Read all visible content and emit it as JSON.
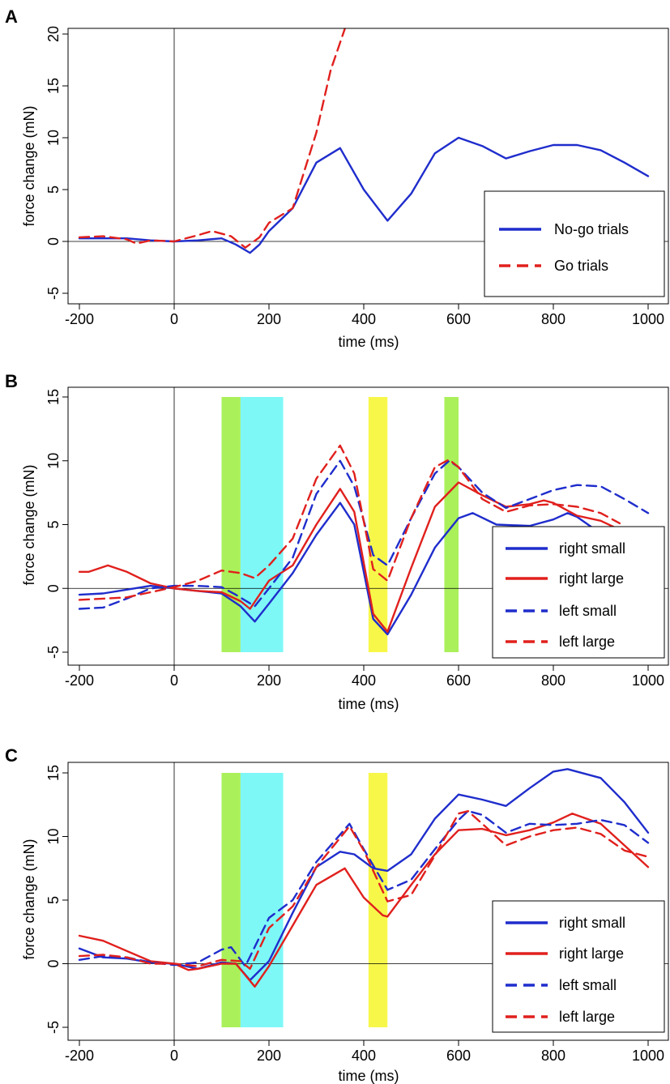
{
  "chart_data": [
    {
      "panel": "A",
      "type": "line",
      "xlabel": "time (ms)",
      "ylabel": "force change (mN)",
      "xlim": [
        -200,
        1000
      ],
      "ylim": [
        -5,
        20
      ],
      "xticks": [
        -200,
        0,
        200,
        400,
        600,
        800,
        1000
      ],
      "yticks": [
        -5,
        0,
        5,
        10,
        15,
        20
      ],
      "grid": false,
      "legend_position": "bottom-right",
      "bands": [],
      "series": [
        {
          "name": "No-go trials",
          "color": "#1f2dcc",
          "dash": "solid",
          "x": [
            -200,
            -150,
            -100,
            -50,
            0,
            50,
            100,
            130,
            160,
            180,
            200,
            250,
            300,
            350,
            400,
            450,
            500,
            550,
            600,
            650,
            700,
            750,
            800,
            850,
            900,
            950,
            1000
          ],
          "y": [
            0.3,
            0.3,
            0.3,
            0.1,
            0,
            0.1,
            0.3,
            -0.3,
            -1.1,
            -0.3,
            1.0,
            3.2,
            7.6,
            9.0,
            5.0,
            2.0,
            4.6,
            8.5,
            10.0,
            9.2,
            8.0,
            8.7,
            9.3,
            9.3,
            8.8,
            7.6,
            6.3
          ]
        },
        {
          "name": "Go trials",
          "color": "#e0201d",
          "dash": "dashed",
          "x": [
            -200,
            -150,
            -100,
            -80,
            -50,
            0,
            50,
            80,
            120,
            150,
            180,
            200,
            250,
            300,
            330,
            360
          ],
          "y": [
            0.4,
            0.5,
            0.2,
            -0.2,
            0.1,
            0,
            0.6,
            1.0,
            0.5,
            -0.6,
            0.4,
            1.8,
            3.2,
            10.5,
            16.5,
            20.5
          ]
        }
      ]
    },
    {
      "panel": "B",
      "type": "line",
      "xlabel": "time (ms)",
      "ylabel": "force change (mN)",
      "xlim": [
        -200,
        1000
      ],
      "ylim": [
        -5,
        15
      ],
      "xticks": [
        -200,
        0,
        200,
        400,
        600,
        800,
        1000
      ],
      "yticks": [
        -5,
        0,
        5,
        10,
        15
      ],
      "grid": false,
      "legend_position": "bottom-right",
      "bands": [
        {
          "from": 100,
          "to": 140,
          "color": "#aaf05a"
        },
        {
          "from": 140,
          "to": 230,
          "color": "#7ef7f7"
        },
        {
          "from": 410,
          "to": 450,
          "color": "#f7f74a"
        },
        {
          "from": 570,
          "to": 600,
          "color": "#aaf05a"
        }
      ],
      "series": [
        {
          "name": "right small",
          "color": "#1f2dcc",
          "dash": "solid",
          "x": [
            -200,
            -150,
            -100,
            -50,
            0,
            50,
            100,
            140,
            170,
            200,
            250,
            300,
            350,
            380,
            420,
            450,
            500,
            550,
            600,
            630,
            680,
            750,
            800,
            830,
            850,
            900,
            940
          ],
          "y": [
            -0.5,
            -0.4,
            -0.1,
            0.2,
            0,
            -0.2,
            -0.4,
            -1.4,
            -2.6,
            -1.2,
            1.2,
            4.2,
            6.7,
            5.0,
            -2.4,
            -3.6,
            -0.5,
            3.2,
            5.5,
            5.9,
            5.0,
            4.9,
            5.4,
            5.9,
            5.6,
            4.3,
            3.2
          ]
        },
        {
          "name": "right large",
          "color": "#e0201d",
          "dash": "solid",
          "x": [
            -200,
            -180,
            -140,
            -100,
            -50,
            0,
            50,
            100,
            140,
            160,
            200,
            250,
            300,
            350,
            380,
            420,
            450,
            500,
            550,
            600,
            650,
            700,
            750,
            780,
            800,
            850,
            900,
            940
          ],
          "y": [
            1.3,
            1.3,
            1.8,
            1.3,
            0.4,
            0,
            -0.2,
            -0.3,
            -1.0,
            -1.6,
            0.6,
            1.8,
            5.0,
            7.8,
            6.0,
            -2.0,
            -3.4,
            1.6,
            6.4,
            8.3,
            7.3,
            6.4,
            6.6,
            6.9,
            6.7,
            5.7,
            5.3,
            4.6
          ]
        },
        {
          "name": "left small",
          "color": "#1f2dcc",
          "dash": "dashed",
          "x": [
            -200,
            -150,
            -100,
            -50,
            0,
            50,
            100,
            130,
            170,
            200,
            250,
            300,
            350,
            380,
            420,
            450,
            500,
            550,
            580,
            600,
            650,
            700,
            750,
            800,
            850,
            900,
            950,
            1000
          ],
          "y": [
            -1.6,
            -1.5,
            -0.8,
            0,
            0.2,
            0.2,
            0.1,
            -0.5,
            -1.4,
            0,
            2.4,
            7.4,
            10.0,
            8.0,
            2.6,
            1.8,
            5.5,
            9.0,
            10.0,
            9.5,
            7.5,
            6.3,
            7.0,
            7.7,
            8.1,
            8.0,
            7.0,
            5.9
          ]
        },
        {
          "name": "left large",
          "color": "#e0201d",
          "dash": "dashed",
          "x": [
            -200,
            -150,
            -100,
            -50,
            0,
            50,
            100,
            140,
            170,
            200,
            250,
            300,
            350,
            380,
            420,
            450,
            500,
            550,
            580,
            600,
            650,
            700,
            750,
            800,
            850,
            900,
            940
          ],
          "y": [
            -0.9,
            -0.8,
            -0.7,
            -0.3,
            0.1,
            0.6,
            1.4,
            1.2,
            0.8,
            1.8,
            3.9,
            8.6,
            11.2,
            9.0,
            1.5,
            0.6,
            5.5,
            9.5,
            10.1,
            9.5,
            7.0,
            6.0,
            6.5,
            6.6,
            6.4,
            5.9,
            5.1
          ]
        }
      ]
    },
    {
      "panel": "C",
      "type": "line",
      "xlabel": "time (ms)",
      "ylabel": "force change (mN)",
      "xlim": [
        -200,
        1000
      ],
      "ylim": [
        -5,
        15
      ],
      "xticks": [
        -200,
        0,
        200,
        400,
        600,
        800,
        1000
      ],
      "yticks": [
        -5,
        0,
        5,
        10,
        15
      ],
      "grid": false,
      "legend_position": "bottom-right",
      "bands": [
        {
          "from": 100,
          "to": 140,
          "color": "#aaf05a"
        },
        {
          "from": 140,
          "to": 230,
          "color": "#7ef7f7"
        },
        {
          "from": 410,
          "to": 450,
          "color": "#f7f74a"
        }
      ],
      "series": [
        {
          "name": "right small",
          "color": "#1f2dcc",
          "dash": "solid",
          "x": [
            -200,
            -150,
            -100,
            -50,
            0,
            50,
            100,
            130,
            160,
            200,
            250,
            300,
            350,
            380,
            420,
            450,
            500,
            550,
            600,
            650,
            700,
            750,
            800,
            830,
            900,
            950,
            1000
          ],
          "y": [
            1.2,
            0.5,
            0.4,
            0.1,
            0,
            -0.4,
            0.1,
            0,
            -1.3,
            0.2,
            4.0,
            7.6,
            8.8,
            8.6,
            7.5,
            7.3,
            8.6,
            11.4,
            13.3,
            12.9,
            12.4,
            13.8,
            15.1,
            15.3,
            14.6,
            12.7,
            10.3
          ]
        },
        {
          "name": "right large",
          "color": "#e0201d",
          "dash": "solid",
          "x": [
            -200,
            -150,
            -100,
            -50,
            0,
            30,
            50,
            100,
            130,
            170,
            200,
            250,
            300,
            360,
            400,
            440,
            450,
            500,
            550,
            600,
            650,
            700,
            750,
            800,
            840,
            900,
            950,
            1000
          ],
          "y": [
            2.2,
            1.8,
            1.0,
            0.2,
            0,
            -0.5,
            -0.4,
            0,
            0,
            -1.8,
            -0.2,
            3.0,
            6.2,
            7.5,
            5.2,
            3.8,
            3.7,
            6.2,
            8.6,
            10.5,
            10.6,
            10.1,
            10.5,
            11.1,
            11.8,
            11.0,
            9.3,
            7.6
          ]
        },
        {
          "name": "left small",
          "color": "#1f2dcc",
          "dash": "dashed",
          "x": [
            -200,
            -150,
            -100,
            -50,
            0,
            50,
            100,
            120,
            150,
            200,
            250,
            300,
            370,
            400,
            450,
            500,
            550,
            600,
            620,
            650,
            700,
            750,
            800,
            850,
            900,
            950,
            1000
          ],
          "y": [
            0.3,
            0.6,
            0.5,
            0.1,
            -0.1,
            0.1,
            1.1,
            1.3,
            -0.2,
            3.6,
            5.0,
            8.0,
            11.0,
            9.0,
            5.8,
            6.6,
            9.0,
            11.3,
            12.0,
            11.7,
            10.3,
            11.0,
            10.9,
            11.0,
            11.3,
            10.9,
            9.5
          ]
        },
        {
          "name": "left large",
          "color": "#e0201d",
          "dash": "dashed",
          "x": [
            -200,
            -150,
            -100,
            -50,
            0,
            50,
            100,
            140,
            160,
            200,
            250,
            300,
            370,
            400,
            450,
            500,
            550,
            600,
            620,
            650,
            700,
            750,
            800,
            850,
            900,
            950,
            1000
          ],
          "y": [
            0.6,
            0.7,
            0.5,
            0,
            0,
            -0.2,
            0.3,
            0.2,
            -0.4,
            2.8,
            4.5,
            7.6,
            10.8,
            8.9,
            4.9,
            5.4,
            8.5,
            11.8,
            12.0,
            11.0,
            9.3,
            10.0,
            10.5,
            10.7,
            10.2,
            8.9,
            8.4
          ]
        }
      ]
    }
  ]
}
